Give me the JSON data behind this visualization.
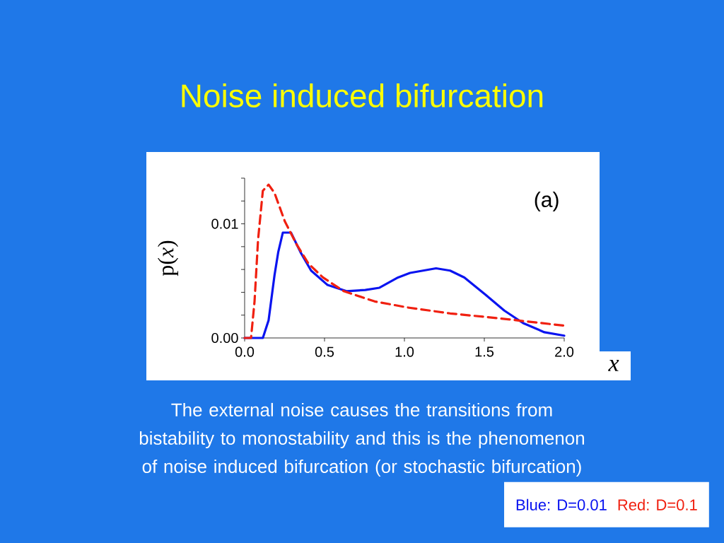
{
  "chart_data": {
    "type": "line",
    "title": "Noise induced bifurcation",
    "xlabel": "x",
    "ylabel": "p(*x*)",
    "annotations": [
      "(a)",
      "The external noise causes the transitions from bistability to monostability and this is the phenomenon of noise induced bifurcation (or stochastic bifurcation)"
    ],
    "xlim": [
      0,
      2
    ],
    "ylim": [
      0,
      0.014
    ],
    "xticks": [
      {
        "value": 0,
        "label": "0.0"
      },
      0.5,
      {
        "value": 1,
        "label": "1.0"
      },
      1.5,
      {
        "value": 2,
        "label": "2.0"
      }
    ],
    "yticks": [
      {
        "value": 0,
        "label": "0.00"
      },
      {
        "value": 0.002,
        "label": null
      },
      {
        "value": 0.004,
        "label": null
      },
      {
        "value": 0.006,
        "label": null
      },
      {
        "value": 0.008,
        "label": null
      },
      0.01,
      {
        "value": 0.012,
        "label": null
      },
      {
        "value": 0.014,
        "label": null
      }
    ],
    "grid": false,
    "legend": "bottom right",
    "marker": "none",
    "series": [
      {
        "name": "Blue: D=0.01",
        "color": "#0a14f0",
        "line_style": "solid",
        "x": [
          0,
          0.114,
          0.15,
          0.187,
          0.21,
          0.239,
          0.29,
          0.35,
          0.416,
          0.519,
          0.637,
          0.755,
          0.844,
          0.96,
          1.035,
          1.198,
          1.286,
          1.375,
          1.507,
          1.625,
          1.743,
          1.876,
          2.0
        ],
        "values": [
          0,
          0,
          0.00155,
          0.0055,
          0.0075,
          0.00923,
          0.00923,
          0.0075,
          0.0059,
          0.00464,
          0.0041,
          0.0042,
          0.0044,
          0.0053,
          0.0057,
          0.0061,
          0.0059,
          0.0053,
          0.0038,
          0.0024,
          0.0013,
          0.0005,
          0.0002
        ]
      },
      {
        "name": "Red: D=0.1",
        "color": "#f02010",
        "line_style": "dashed",
        "x": [
          0,
          0.04,
          0.062,
          0.084,
          0.114,
          0.15,
          0.187,
          0.252,
          0.327,
          0.4,
          0.49,
          0.62,
          0.814,
          1.02,
          1.286,
          1.58,
          2.0
        ],
        "values": [
          0,
          0,
          0.0032,
          0.0086,
          0.0129,
          0.01343,
          0.0127,
          0.0102,
          0.00815,
          0.0065,
          0.0053,
          0.0041,
          0.0032,
          0.00267,
          0.00215,
          0.00174,
          0.00108
        ]
      }
    ]
  }
}
